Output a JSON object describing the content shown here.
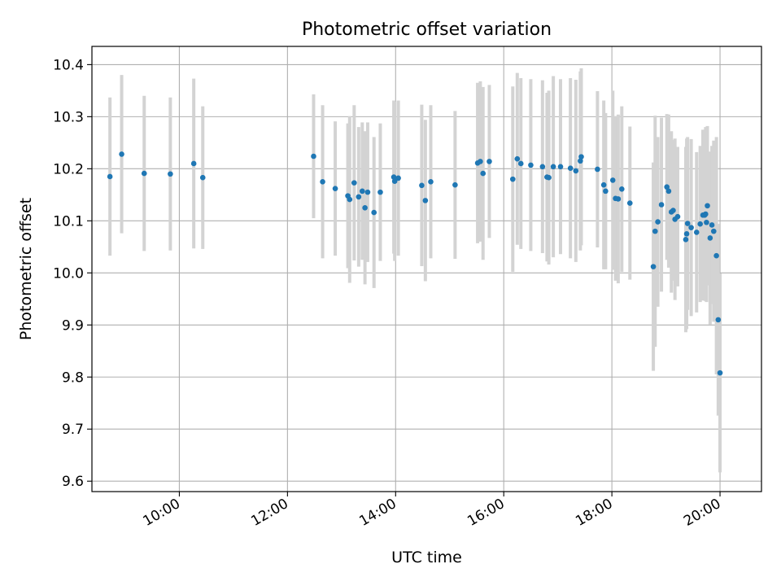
{
  "chart_data": {
    "type": "scatter",
    "title": "Photometric offset variation",
    "xlabel": "UTC time",
    "ylabel": "Photometric offset",
    "x_unit": "time of day (HH:MM UTC)",
    "xlim": [
      "08:23",
      "20:46"
    ],
    "ylim": [
      9.58,
      10.435
    ],
    "x_ticks": [
      "10:00",
      "12:00",
      "14:00",
      "16:00",
      "18:00",
      "20:00"
    ],
    "y_ticks": [
      "9.6",
      "9.7",
      "9.8",
      "9.9",
      "10.0",
      "10.1",
      "10.2",
      "10.3",
      "10.4"
    ],
    "grid": true,
    "point_color": "#1f77b4",
    "errorbar_color": "#d3d3d3",
    "points": [
      {
        "x": "08:43",
        "y": 10.185,
        "err": 0.152
      },
      {
        "x": "08:56",
        "y": 10.228,
        "err": 0.152
      },
      {
        "x": "09:21",
        "y": 10.191,
        "err": 0.149
      },
      {
        "x": "09:50",
        "y": 10.19,
        "err": 0.147
      },
      {
        "x": "10:16",
        "y": 10.21,
        "err": 0.163
      },
      {
        "x": "10:26",
        "y": 10.183,
        "err": 0.137
      },
      {
        "x": "12:29",
        "y": 10.224,
        "err": 0.119
      },
      {
        "x": "12:39",
        "y": 10.175,
        "err": 0.147
      },
      {
        "x": "12:53",
        "y": 10.162,
        "err": 0.129
      },
      {
        "x": "13:07",
        "y": 10.148,
        "err": 0.139
      },
      {
        "x": "13:09",
        "y": 10.141,
        "err": 0.16
      },
      {
        "x": "13:14",
        "y": 10.173,
        "err": 0.149
      },
      {
        "x": "13:19",
        "y": 10.146,
        "err": 0.134
      },
      {
        "x": "13:23",
        "y": 10.157,
        "err": 0.132
      },
      {
        "x": "13:26",
        "y": 10.125,
        "err": 0.147
      },
      {
        "x": "13:29",
        "y": 10.155,
        "err": 0.134
      },
      {
        "x": "13:36",
        "y": 10.116,
        "err": 0.145
      },
      {
        "x": "13:43",
        "y": 10.155,
        "err": 0.132
      },
      {
        "x": "13:58",
        "y": 10.184,
        "err": 0.147
      },
      {
        "x": "13:59",
        "y": 10.176,
        "err": 0.153
      },
      {
        "x": "14:03",
        "y": 10.182,
        "err": 0.149
      },
      {
        "x": "14:29",
        "y": 10.168,
        "err": 0.155
      },
      {
        "x": "14:33",
        "y": 10.139,
        "err": 0.155
      },
      {
        "x": "14:39",
        "y": 10.175,
        "err": 0.147
      },
      {
        "x": "15:06",
        "y": 10.169,
        "err": 0.142
      },
      {
        "x": "15:31",
        "y": 10.211,
        "err": 0.154
      },
      {
        "x": "15:34",
        "y": 10.214,
        "err": 0.154
      },
      {
        "x": "15:37",
        "y": 10.191,
        "err": 0.166
      },
      {
        "x": "15:44",
        "y": 10.214,
        "err": 0.147
      },
      {
        "x": "16:10",
        "y": 10.18,
        "err": 0.178
      },
      {
        "x": "16:15",
        "y": 10.219,
        "err": 0.165
      },
      {
        "x": "16:19",
        "y": 10.21,
        "err": 0.164
      },
      {
        "x": "16:30",
        "y": 10.207,
        "err": 0.165
      },
      {
        "x": "16:43",
        "y": 10.204,
        "err": 0.166
      },
      {
        "x": "16:48",
        "y": 10.184,
        "err": 0.162
      },
      {
        "x": "16:50",
        "y": 10.183,
        "err": 0.167
      },
      {
        "x": "16:55",
        "y": 10.204,
        "err": 0.174
      },
      {
        "x": "17:03",
        "y": 10.204,
        "err": 0.168
      },
      {
        "x": "17:14",
        "y": 10.201,
        "err": 0.173
      },
      {
        "x": "17:20",
        "y": 10.196,
        "err": 0.175
      },
      {
        "x": "17:25",
        "y": 10.215,
        "err": 0.172
      },
      {
        "x": "17:26",
        "y": 10.223,
        "err": 0.17
      },
      {
        "x": "17:44",
        "y": 10.199,
        "err": 0.15
      },
      {
        "x": "17:51",
        "y": 10.169,
        "err": 0.162
      },
      {
        "x": "17:53",
        "y": 10.157,
        "err": 0.15
      },
      {
        "x": "18:01",
        "y": 10.178,
        "err": 0.172
      },
      {
        "x": "18:04",
        "y": 10.143,
        "err": 0.158
      },
      {
        "x": "18:07",
        "y": 10.142,
        "err": 0.162
      },
      {
        "x": "18:11",
        "y": 10.161,
        "err": 0.159
      },
      {
        "x": "18:20",
        "y": 10.134,
        "err": 0.147
      },
      {
        "x": "18:46",
        "y": 10.012,
        "err": 0.2
      },
      {
        "x": "18:48",
        "y": 10.08,
        "err": 0.222
      },
      {
        "x": "18:51",
        "y": 10.098,
        "err": 0.163
      },
      {
        "x": "18:55",
        "y": 10.131,
        "err": 0.167
      },
      {
        "x": "19:01",
        "y": 10.165,
        "err": 0.14
      },
      {
        "x": "19:03",
        "y": 10.157,
        "err": 0.147
      },
      {
        "x": "19:06",
        "y": 10.117,
        "err": 0.155
      },
      {
        "x": "19:08",
        "y": 10.12,
        "err": 0.135
      },
      {
        "x": "19:10",
        "y": 10.103,
        "err": 0.155
      },
      {
        "x": "19:13",
        "y": 10.108,
        "err": 0.134
      },
      {
        "x": "19:22",
        "y": 10.064,
        "err": 0.178
      },
      {
        "x": "19:23",
        "y": 10.075,
        "err": 0.183
      },
      {
        "x": "19:24",
        "y": 10.095,
        "err": 0.166
      },
      {
        "x": "19:28",
        "y": 10.087,
        "err": 0.17
      },
      {
        "x": "19:34",
        "y": 10.078,
        "err": 0.154
      },
      {
        "x": "19:38",
        "y": 10.094,
        "err": 0.15
      },
      {
        "x": "19:41",
        "y": 10.111,
        "err": 0.164
      },
      {
        "x": "19:43",
        "y": 10.111,
        "err": 0.164
      },
      {
        "x": "19:44",
        "y": 10.113,
        "err": 0.167
      },
      {
        "x": "19:45",
        "y": 10.097,
        "err": 0.153
      },
      {
        "x": "19:46",
        "y": 10.129,
        "err": 0.153
      },
      {
        "x": "19:49",
        "y": 10.067,
        "err": 0.166
      },
      {
        "x": "19:51",
        "y": 10.092,
        "err": 0.152
      },
      {
        "x": "19:53",
        "y": 10.08,
        "err": 0.174
      },
      {
        "x": "19:56",
        "y": 10.033,
        "err": 0.228
      },
      {
        "x": "19:58",
        "y": 9.91,
        "err": 0.184
      },
      {
        "x": "20:00",
        "y": 9.808,
        "err": 0.191
      }
    ]
  }
}
